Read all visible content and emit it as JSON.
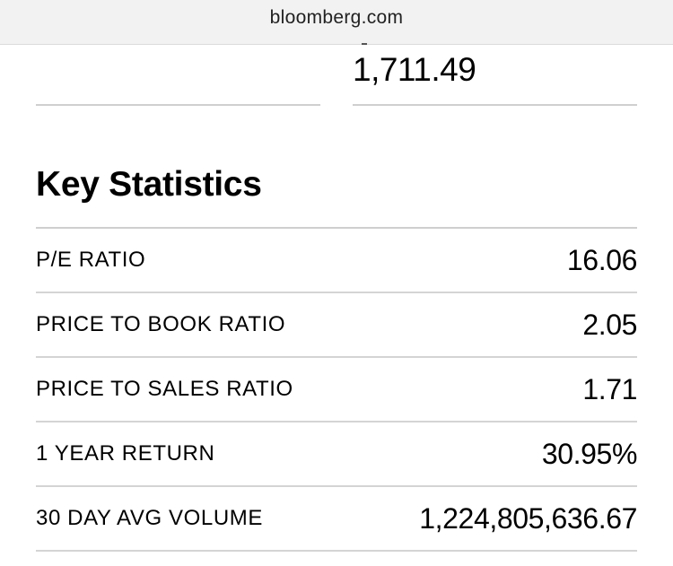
{
  "browser": {
    "url": "bloomberg.com"
  },
  "top_metrics": {
    "right_value": "1,711.49"
  },
  "key_statistics": {
    "title": "Key Statistics",
    "rows": [
      {
        "label": "P/E RATIO",
        "value": "16.06"
      },
      {
        "label": "PRICE TO BOOK RATIO",
        "value": "2.05"
      },
      {
        "label": "PRICE TO SALES RATIO",
        "value": "1.71"
      },
      {
        "label": "1 YEAR RETURN",
        "value": "30.95%"
      },
      {
        "label": "30 DAY AVG VOLUME",
        "value": "1,224,805,636.67"
      }
    ]
  }
}
